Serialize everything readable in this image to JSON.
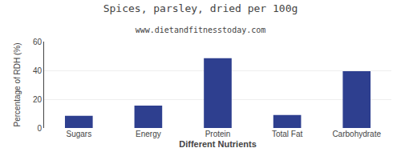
{
  "chart_data": {
    "type": "bar",
    "title": "Spices, parsley, dried per 100g",
    "subtitle": "www.dietandfitnesstoday.com",
    "xlabel": "Different Nutrients",
    "ylabel": "Percentage of RDH (%)",
    "categories": [
      "Sugars",
      "Energy",
      "Protein",
      "Total Fat",
      "Carbohydrate"
    ],
    "values": [
      8.5,
      15.5,
      48.5,
      9.0,
      39.5
    ],
    "color": "#2e3f8f",
    "ylim": [
      0,
      60
    ],
    "yticks": [
      0,
      20,
      40,
      60
    ],
    "grid": true
  }
}
